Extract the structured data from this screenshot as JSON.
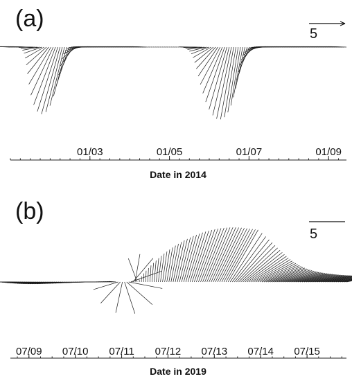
{
  "chart_data": [
    {
      "type": "vector",
      "panel_label": "(a)",
      "xlabel": "Date in 2014",
      "tick_labels": [
        "01/03",
        "01/05",
        "01/07",
        "01/09"
      ],
      "tick_positions": [
        3,
        5,
        7,
        9
      ],
      "xlim": [
        1.0,
        9.45
      ],
      "scale_value": 5,
      "scale_label": "5",
      "events": [
        {
          "center": 2.25,
          "width": 0.45,
          "magnitude": 6.3,
          "angle_deg": 268
        },
        {
          "center": 6.6,
          "width": 0.6,
          "magnitude": 6.8,
          "angle_deg": 272
        }
      ],
      "background": {
        "magnitude": 1.5,
        "angle_deg": 178
      },
      "calm_interval": [
        4.5,
        5.6
      ],
      "count": 150
    },
    {
      "type": "vector",
      "panel_label": "(b)",
      "xlabel": "Date in 2019",
      "tick_labels": [
        "07/09",
        "07/10",
        "07/11",
        "07/12",
        "07/13",
        "07/14",
        "07/15"
      ],
      "tick_positions": [
        9,
        10,
        11,
        12,
        13,
        14,
        15
      ],
      "xlim": [
        8.6,
        15.85
      ],
      "scale_value": 5,
      "scale_label": "5",
      "phases": [
        {
          "from": 8.6,
          "to": 10.9,
          "magnitude": 1.6,
          "angle_deg": 180
        },
        {
          "from": 10.9,
          "to": 11.35,
          "magnitude": 3.2,
          "angle_deg": "rotating"
        },
        {
          "from": 11.35,
          "to": 13.3,
          "magnitude": 5.6,
          "angle_deg": 60
        },
        {
          "from": 13.3,
          "to": 15.85,
          "magnitude": 2.6,
          "angle_deg": 10
        }
      ],
      "count": 160
    }
  ]
}
